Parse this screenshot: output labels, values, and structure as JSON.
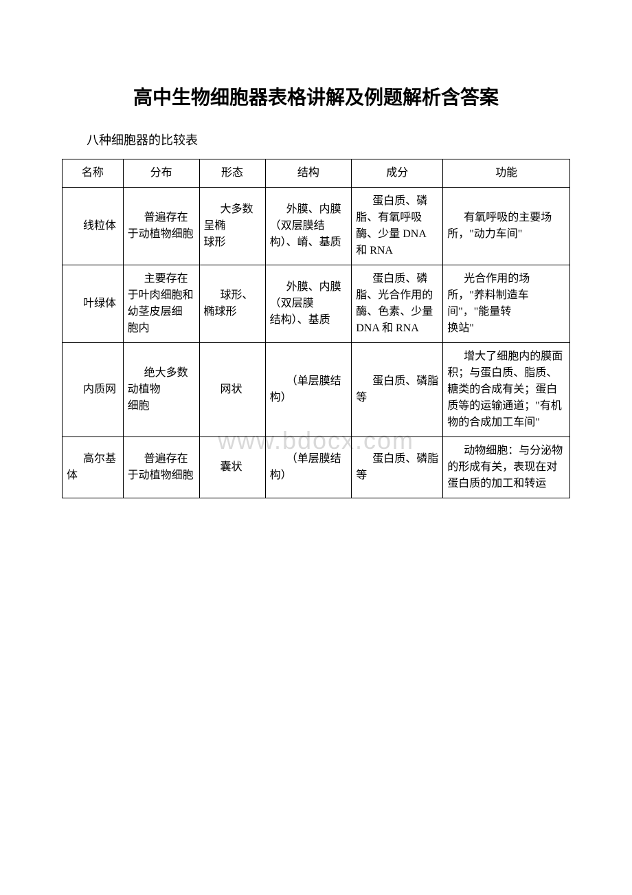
{
  "title": "高中生物细胞器表格讲解及例题解析含答案",
  "subtitle": "八种细胞器的比较表",
  "watermark": "www.bdocx.com",
  "headers": [
    "名称",
    "分布",
    "形态",
    "结构",
    "成分",
    "功能"
  ],
  "rows": [
    {
      "name": "线粒体",
      "distribution": "普遍存在于动植物细胞",
      "shape": "大多数呈椭\n球形",
      "structure": "外膜、内膜（双层膜结构）、嵴、基质",
      "composition": "蛋白质、磷脂、有氧呼吸酶、少量 DNA 和 RNA",
      "function": "有氧呼吸的主要场所，\"动力车间\""
    },
    {
      "name": "叶绿体",
      "distribution": "主要存在于叶肉细胞和幼茎皮层细\n胞内",
      "shape": "球形、椭球形",
      "structure": "外膜、内膜（双层膜\n结构）、基质",
      "composition": "蛋白质、磷脂、光合作用的酶、色素、少量 DNA 和 RNA",
      "function": "光合作用的场所，\"养料制造车间\"，\"能量转\n换站\""
    },
    {
      "name": "内质网",
      "distribution": "绝大多数动植物\n细胞",
      "shape": "网状",
      "structure": "（单层膜结构）",
      "composition": "蛋白质、磷脂等",
      "function": "增大了细胞内的膜面积；与蛋白质、脂质、糖类的合成有关；蛋白质等的运输通道；\"有机物的合成加工车间\""
    },
    {
      "name": "高尔基体",
      "distribution": "普遍存在于动植物细胞",
      "shape": "囊状",
      "structure": "（单层膜结构）",
      "composition": "蛋白质、磷脂等",
      "function": "动物细胞：与分泌物的形成有关，表现在对蛋白质的加工和转运"
    }
  ],
  "colors": {
    "text": "#000000",
    "border": "#000000",
    "background": "#ffffff",
    "watermark": "#d9d9d9"
  }
}
